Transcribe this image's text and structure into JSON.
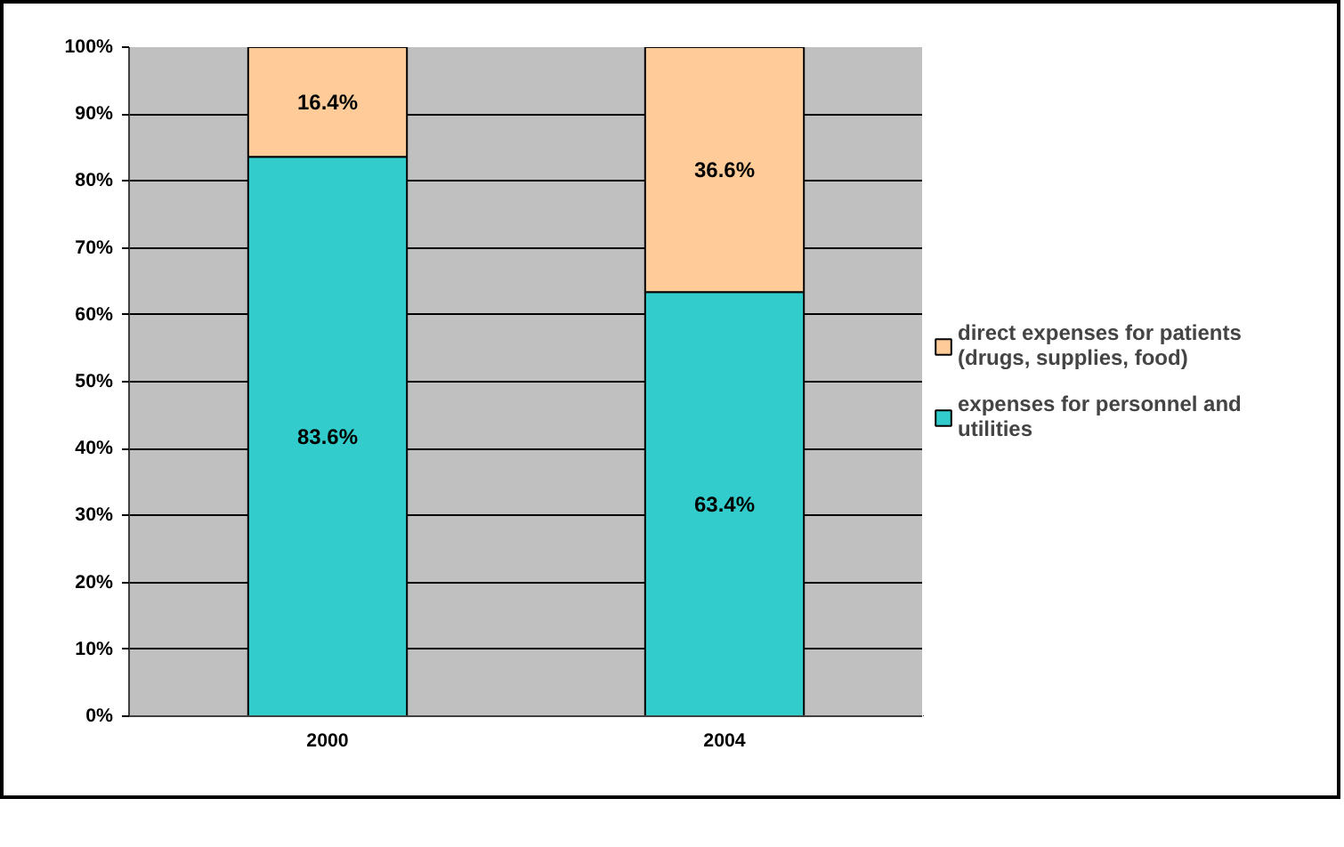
{
  "chart_data": {
    "type": "bar",
    "stacked": true,
    "categories": [
      "2000",
      "2004"
    ],
    "series": [
      {
        "name": "expenses for personnel and utilities",
        "color": "#33cccc",
        "values": [
          83.6,
          63.4
        ],
        "value_labels": [
          "83.6%",
          "63.4%"
        ]
      },
      {
        "name": "direct expenses for patients (drugs, supplies, food)",
        "color": "#ffcc99",
        "values": [
          16.4,
          36.6
        ],
        "value_labels": [
          "16.4%",
          "36.6%"
        ]
      }
    ],
    "ylim": [
      0,
      100
    ],
    "yticks": [
      {
        "value": 0,
        "label": "0%"
      },
      {
        "value": 10,
        "label": "10%"
      },
      {
        "value": 20,
        "label": "20%"
      },
      {
        "value": 30,
        "label": "30%"
      },
      {
        "value": 40,
        "label": "40%"
      },
      {
        "value": 50,
        "label": "50%"
      },
      {
        "value": 60,
        "label": "60%"
      },
      {
        "value": 70,
        "label": "70%"
      },
      {
        "value": 80,
        "label": "80%"
      },
      {
        "value": 90,
        "label": "90%"
      },
      {
        "value": 100,
        "label": "100%"
      }
    ],
    "grid": "y",
    "legend": "right"
  }
}
